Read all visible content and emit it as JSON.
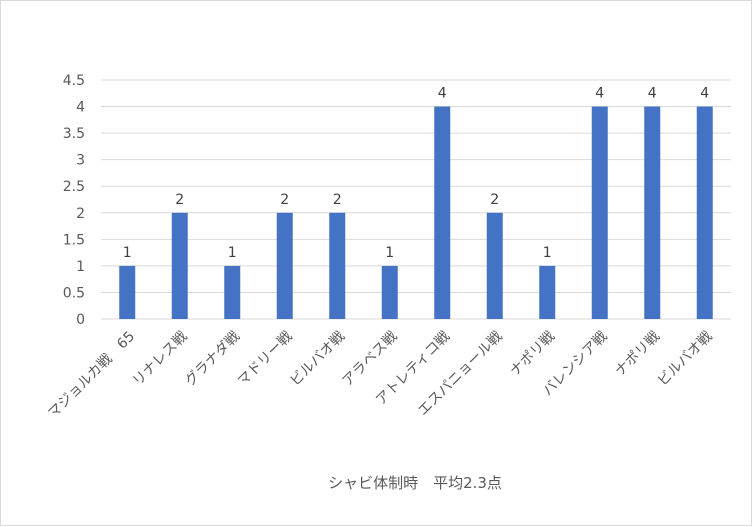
{
  "chart_data": {
    "type": "bar",
    "title": "",
    "xlabel": "シャビ体制時　平均2.3点",
    "ylabel": "",
    "ylim": [
      0,
      4.5
    ],
    "yticks": [
      0,
      0.5,
      1,
      1.5,
      2,
      2.5,
      3,
      3.5,
      4,
      4.5
    ],
    "grid": true,
    "legend": "none",
    "bar_color": "#4472C4",
    "categories": [
      "マジョルカ戦　65",
      "リナレス戦",
      "グラナダ戦",
      "マドリー戦",
      "ビルバオ戦",
      "アラベス戦",
      "アトレティコ戦",
      "エスパニョール戦",
      "ナポリ戦",
      "バレンシア戦",
      "ナポリ戦",
      "ビルバオ戦"
    ],
    "values": [
      1,
      2,
      1,
      2,
      2,
      1,
      4,
      2,
      1,
      4,
      4,
      4
    ],
    "data_labels": [
      "1",
      "2",
      "1",
      "2",
      "2",
      "1",
      "4",
      "2",
      "1",
      "4",
      "4",
      "4"
    ]
  }
}
